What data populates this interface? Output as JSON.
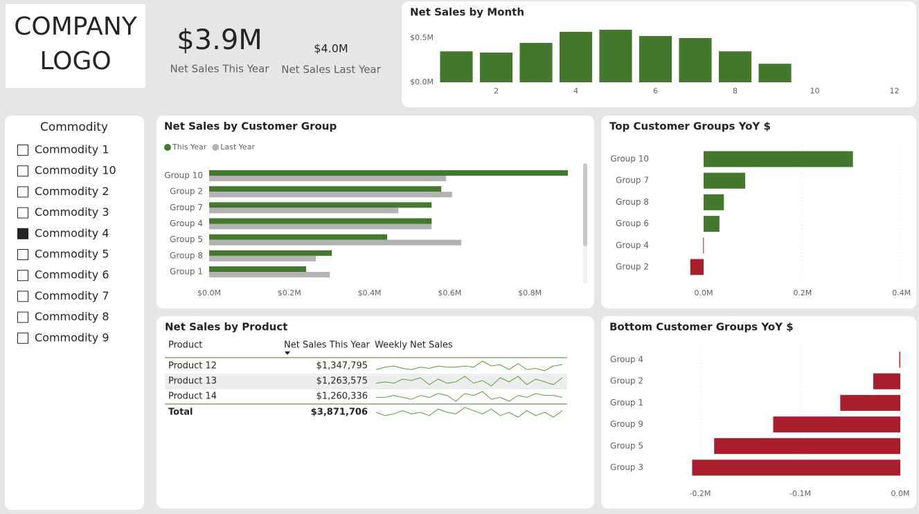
{
  "logo": [
    "COMPANY",
    "LOGO"
  ],
  "cards": [
    {
      "value": "$3.9M",
      "label": "Net Sales This Year"
    },
    {
      "value": "$4.0M",
      "label": "Net Sales Last Year"
    }
  ],
  "slicer": {
    "title": "Commodity",
    "items": [
      {
        "label": "Commodity 1",
        "checked": false
      },
      {
        "label": "Commodity 10",
        "checked": false
      },
      {
        "label": "Commodity 2",
        "checked": false
      },
      {
        "label": "Commodity 3",
        "checked": false
      },
      {
        "label": "Commodity 4",
        "checked": true
      },
      {
        "label": "Commodity 5",
        "checked": false
      },
      {
        "label": "Commodity 6",
        "checked": false
      },
      {
        "label": "Commodity 7",
        "checked": false
      },
      {
        "label": "Commodity 8",
        "checked": false
      },
      {
        "label": "Commodity 9",
        "checked": false
      }
    ]
  },
  "chart_data": [
    {
      "type": "bar",
      "title": "Net Sales by Month",
      "x": [
        1,
        2,
        3,
        4,
        5,
        6,
        7,
        8,
        9
      ],
      "values": [
        0.35,
        0.336,
        0.445,
        0.57,
        0.594,
        0.523,
        0.5,
        0.35,
        0.21
      ],
      "color": "#43782e",
      "xlim": [
        0.5,
        12.5
      ],
      "xticks": [
        2,
        4,
        6,
        8,
        10,
        12
      ],
      "ylim": [
        0,
        0.6
      ],
      "yticks": [
        {
          "value": 0,
          "label": "$0.0M"
        },
        {
          "value": 0.5,
          "label": "$0.5M"
        }
      ]
    },
    {
      "type": "hbar_grouped",
      "title": "Net Sales by Customer Group",
      "categories": [
        "Group 10",
        "Group 2",
        "Group 7",
        "Group 4",
        "Group 5",
        "Group 8",
        "Group 1"
      ],
      "series": [
        {
          "name": "This Year",
          "color": "#43782e",
          "values": [
            0.895,
            0.579,
            0.555,
            0.555,
            0.444,
            0.306,
            0.242
          ]
        },
        {
          "name": "Last Year",
          "color": "#b3b3b3",
          "values": [
            0.591,
            0.606,
            0.472,
            0.555,
            0.629,
            0.266,
            0.301
          ]
        }
      ],
      "legend": "top-left",
      "xlim": [
        0,
        0.9
      ],
      "xticks": [
        {
          "value": 0,
          "label": "$0.0M"
        },
        {
          "value": 0.2,
          "label": "$0.2M"
        },
        {
          "value": 0.4,
          "label": "$0.4M"
        },
        {
          "value": 0.6,
          "label": "$0.6M"
        },
        {
          "value": 0.8,
          "label": "$0.8M"
        }
      ]
    },
    {
      "type": "hbar_diverging",
      "title": "Top Customer Groups YoY $",
      "categories": [
        "Group 10",
        "Group 7",
        "Group 8",
        "Group 6",
        "Group 4",
        "Group 2"
      ],
      "values": [
        0.302,
        0.084,
        0.041,
        0.032,
        -0.001,
        -0.027
      ],
      "positive_color": "#43782e",
      "negative_color": "#a91e2c",
      "grid": true,
      "xlim": [
        -0.03,
        0.4
      ],
      "xticks": [
        {
          "value": 0,
          "label": "0.0M"
        },
        {
          "value": 0.2,
          "label": "0.2M"
        },
        {
          "value": 0.4,
          "label": "0.4M"
        }
      ]
    },
    {
      "type": "hbar_diverging",
      "title": "Bottom Customer Groups YoY $",
      "categories": [
        "Group 4",
        "Group 2",
        "Group 1",
        "Group 9",
        "Group 5",
        "Group 3"
      ],
      "values": [
        -0.001,
        -0.027,
        -0.06,
        -0.127,
        -0.186,
        -0.208
      ],
      "positive_color": "#43782e",
      "negative_color": "#a91e2c",
      "grid": true,
      "xlim": [
        -0.21,
        0
      ],
      "xticks": [
        {
          "value": -0.2,
          "label": "-0.2M"
        },
        {
          "value": -0.1,
          "label": "-0.1M"
        },
        {
          "value": 0,
          "label": "0.0M"
        }
      ]
    }
  ],
  "table": {
    "title": "Net Sales by Product",
    "columns": [
      "Product",
      "Net Sales This Year",
      "Weekly Net Sales"
    ],
    "sort_column": 1,
    "rows": [
      [
        "Product 12",
        "$1,347,795"
      ],
      [
        "Product 13",
        "$1,263,575"
      ],
      [
        "Product 14",
        "$1,260,336"
      ]
    ],
    "total": [
      "Total",
      "$3,871,706"
    ],
    "sparkline_color": "#5a9a3c",
    "sparklines": [
      [
        0.3,
        0.5,
        0.6,
        0.4,
        0.3,
        0.5,
        0.4,
        0.6,
        0.5,
        0.5,
        0.6,
        0.5,
        1.0,
        0.6,
        0.7,
        0.3,
        0.8,
        0.3,
        0.4,
        0.2,
        0.6,
        0.7
      ],
      [
        0.4,
        0.5,
        0.4,
        0.7,
        0.6,
        0.8,
        0.3,
        0.7,
        0.4,
        0.5,
        0.9,
        0.4,
        0.6,
        0.2,
        0.8,
        0.5,
        0.9,
        0.3,
        0.7,
        0.5,
        0.3,
        0.8
      ],
      [
        0.5,
        0.5,
        0.6,
        0.5,
        0.4,
        0.6,
        0.5,
        0.7,
        0.6,
        0.3,
        0.7,
        0.6,
        0.8,
        0.4,
        0.5,
        0.3,
        0.6,
        0.5,
        0.7,
        0.6,
        0.6,
        0.5
      ],
      [
        0.5,
        0.3,
        0.4,
        0.6,
        0.4,
        0.5,
        0.3,
        0.7,
        0.5,
        0.4,
        0.8,
        0.6,
        0.4,
        0.7,
        0.3,
        0.5,
        0.2,
        0.6,
        0.3,
        0.5,
        0.2,
        0.6
      ]
    ]
  }
}
